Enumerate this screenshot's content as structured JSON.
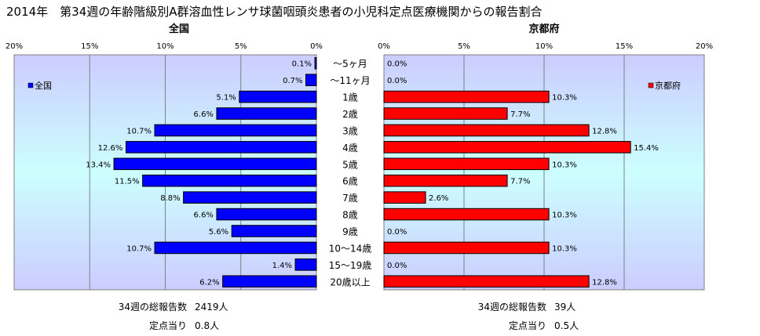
{
  "title": "2014年　第34週の年齢階級別A群溶血性レンサ球菌咽頭炎患者の小児科定点医療機関からの報告割合",
  "chart_data": [
    {
      "type": "bar",
      "orientation": "horizontal",
      "direction": "right-to-left",
      "panel_title": "全国",
      "legend": "全国",
      "legend_position": "top-left",
      "color": "#0000ff",
      "xlim": [
        0,
        20
      ],
      "tick_labels": [
        "20%",
        "15%",
        "10%",
        "5%",
        "0%"
      ],
      "grid": true,
      "categories": [
        "～5ヶ月",
        "～11ヶ月",
        "1歳",
        "2歳",
        "3歳",
        "4歳",
        "5歳",
        "6歳",
        "7歳",
        "8歳",
        "9歳",
        "10～14歳",
        "15～19歳",
        "20歳以上"
      ],
      "values": [
        0.1,
        0.7,
        5.1,
        6.6,
        10.7,
        12.6,
        13.4,
        11.5,
        8.8,
        6.6,
        5.6,
        10.7,
        1.4,
        6.2
      ],
      "value_labels": [
        "0.1%",
        "0.7%",
        "5.1%",
        "6.6%",
        "10.7%",
        "12.6%",
        "13.4%",
        "11.5%",
        "8.8%",
        "6.6%",
        "5.6%",
        "10.7%",
        "1.4%",
        "6.2%"
      ]
    },
    {
      "type": "bar",
      "orientation": "horizontal",
      "direction": "left-to-right",
      "panel_title": "京都府",
      "legend": "京都府",
      "legend_position": "top-right",
      "color": "#ff0000",
      "xlim": [
        0,
        20
      ],
      "tick_labels": [
        "0%",
        "5%",
        "10%",
        "15%",
        "20%"
      ],
      "grid": true,
      "categories": [
        "～5ヶ月",
        "～11ヶ月",
        "1歳",
        "2歳",
        "3歳",
        "4歳",
        "5歳",
        "6歳",
        "7歳",
        "8歳",
        "9歳",
        "10～14歳",
        "15～19歳",
        "20歳以上"
      ],
      "values": [
        0.0,
        0.0,
        10.3,
        7.7,
        12.8,
        15.4,
        10.3,
        7.7,
        2.6,
        10.3,
        0.0,
        10.3,
        0.0,
        12.8
      ],
      "value_labels": [
        "0.0%",
        "0.0%",
        "10.3%",
        "7.7%",
        "12.8%",
        "15.4%",
        "10.3%",
        "7.7%",
        "2.6%",
        "10.3%",
        "0.0%",
        "10.3%",
        "0.0%",
        "12.8%"
      ]
    }
  ],
  "summary": {
    "left": {
      "total_label": "34週の総報告数",
      "total_value": "2419人",
      "per_label": "定点当り",
      "per_value": "0.8人"
    },
    "right": {
      "total_label": "34週の総報告数",
      "total_value": "39人",
      "per_label": "定点当り",
      "per_value": "0.5人"
    }
  }
}
